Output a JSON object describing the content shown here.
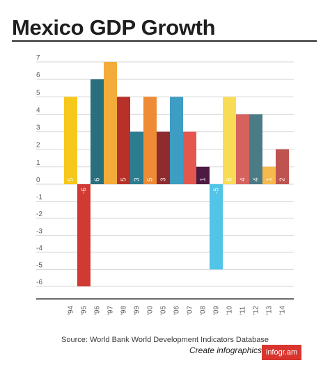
{
  "title": "Mexico GDP Growth",
  "source": "Source: World Bank World Development Indicators Database",
  "credit": {
    "text": "Create infographics",
    "brand": "infogr.am",
    "brand_color": "#d9352f"
  },
  "chart_data": {
    "type": "bar",
    "title": "Mexico GDP Growth",
    "xlabel": "",
    "ylabel": "",
    "ylim": [
      -7,
      7
    ],
    "yticks": [
      7,
      6,
      5,
      4,
      3,
      2,
      1,
      0,
      -1,
      -2,
      -3,
      -4,
      -5,
      -6
    ],
    "ytick_labels": [
      "7",
      "6",
      "5",
      "4",
      "3",
      "2",
      "1",
      "0",
      "-1",
      "-2",
      "-3",
      "-4",
      "-5",
      "-6"
    ],
    "grid": true,
    "categories": [
      "'94",
      "'95",
      "'96",
      "'97",
      "'98",
      "'99",
      "'00",
      "'05",
      "'06",
      "'07",
      "'08",
      "'09",
      "'10",
      "'11",
      "'12",
      "'13",
      "'14"
    ],
    "values": [
      5,
      -6,
      6,
      7,
      5,
      3,
      5,
      3,
      5,
      3,
      1,
      -5,
      5,
      4,
      4,
      1,
      2
    ],
    "labels": [
      "5",
      "-6",
      "6",
      "",
      "5",
      "3",
      "5",
      "3",
      "",
      "",
      "1",
      "-5",
      "5",
      "4",
      "4",
      "1",
      "2"
    ],
    "colors": [
      "#f7c81c",
      "#d13a33",
      "#2a6f7e",
      "#f3ac39",
      "#b7312a",
      "#2c7d90",
      "#ef8b35",
      "#8d2b2f",
      "#3e9dc3",
      "#e4574e",
      "#4e1a43",
      "#51c4e7",
      "#f9dc56",
      "#d6625e",
      "#4b7b86",
      "#f6ba4c",
      "#be5350"
    ]
  }
}
